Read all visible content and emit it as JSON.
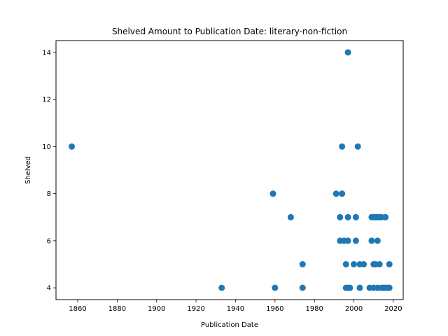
{
  "chart_data": {
    "type": "scatter",
    "title": "Shelved Amount to Publication Date: literary-non-fiction",
    "xlabel": "Publication Date",
    "ylabel": "Shelved",
    "xlim": [
      1849,
      2025
    ],
    "ylim": [
      3.5,
      14.5
    ],
    "xticks": [
      1860,
      1880,
      1900,
      1920,
      1940,
      1960,
      1980,
      2000,
      2020
    ],
    "yticks": [
      4,
      6,
      8,
      10,
      12,
      14
    ],
    "grid": false,
    "marker_color": "#1f77b4",
    "points": [
      [
        1857,
        10
      ],
      [
        1933,
        4
      ],
      [
        1959,
        8
      ],
      [
        1960,
        4
      ],
      [
        1968,
        7
      ],
      [
        1974,
        5
      ],
      [
        1974,
        4
      ],
      [
        1991,
        8
      ],
      [
        1993,
        7
      ],
      [
        1993,
        6
      ],
      [
        1994,
        10
      ],
      [
        1994,
        8
      ],
      [
        1995,
        6
      ],
      [
        1996,
        5
      ],
      [
        1996,
        4
      ],
      [
        1997,
        14
      ],
      [
        1997,
        7
      ],
      [
        1997,
        6
      ],
      [
        1997,
        4
      ],
      [
        1998,
        4
      ],
      [
        2000,
        5
      ],
      [
        2001,
        7
      ],
      [
        2001,
        6
      ],
      [
        2002,
        10
      ],
      [
        2003,
        5
      ],
      [
        2003,
        4
      ],
      [
        2005,
        5
      ],
      [
        2008,
        4
      ],
      [
        2009,
        7
      ],
      [
        2009,
        6
      ],
      [
        2010,
        7
      ],
      [
        2010,
        5
      ],
      [
        2010,
        4
      ],
      [
        2011,
        7
      ],
      [
        2011,
        5
      ],
      [
        2012,
        7
      ],
      [
        2012,
        6
      ],
      [
        2012,
        4
      ],
      [
        2013,
        5
      ],
      [
        2013,
        7
      ],
      [
        2014,
        7
      ],
      [
        2014,
        4
      ],
      [
        2015,
        4
      ],
      [
        2016,
        7
      ],
      [
        2016,
        4
      ],
      [
        2017,
        4
      ],
      [
        2018,
        5
      ],
      [
        2018,
        4
      ]
    ]
  }
}
